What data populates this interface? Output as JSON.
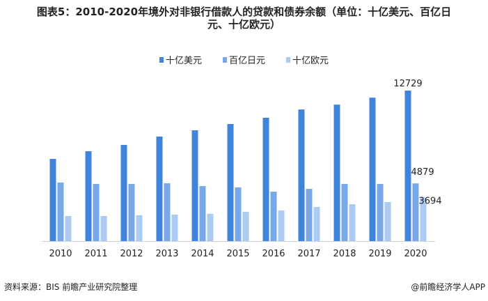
{
  "chart_data": {
    "type": "bar",
    "title_line1": "图表5：2010-2020年境外对非银行借款人的贷款和债券余额（单位：十亿美元、百亿日",
    "title_line2": "元、十亿欧元）",
    "categories": [
      "2010",
      "2011",
      "2012",
      "2013",
      "2014",
      "2015",
      "2016",
      "2017",
      "2018",
      "2019",
      "2020"
    ],
    "series": [
      {
        "name": "十亿美元",
        "color": "#3f83db",
        "values": [
          6950,
          7600,
          8130,
          8840,
          9370,
          9900,
          10430,
          11130,
          11540,
          12130,
          12729
        ]
      },
      {
        "name": "百亿日元",
        "color": "#79a8e8",
        "values": [
          4950,
          4830,
          4830,
          4890,
          4650,
          4540,
          4180,
          4420,
          4830,
          4830,
          4879
        ]
      },
      {
        "name": "十亿欧元",
        "color": "#abcbf3",
        "values": [
          2120,
          2120,
          2180,
          2240,
          2300,
          2470,
          2590,
          2890,
          3120,
          3300,
          3694
        ]
      }
    ],
    "data_labels": [
      {
        "series": 0,
        "index": 10,
        "text": "12729"
      },
      {
        "series": 1,
        "index": 10,
        "text": "4879"
      },
      {
        "series": 2,
        "index": 10,
        "text": "3694"
      }
    ],
    "xlabel": "",
    "ylabel": "",
    "ylim": [
      0,
      12800
    ],
    "grid": false,
    "legend_position": "top-center"
  },
  "footer": {
    "source": "资料来源：BIS 前瞻产业研究院整理",
    "brand": "@前瞻经济学人APP"
  }
}
